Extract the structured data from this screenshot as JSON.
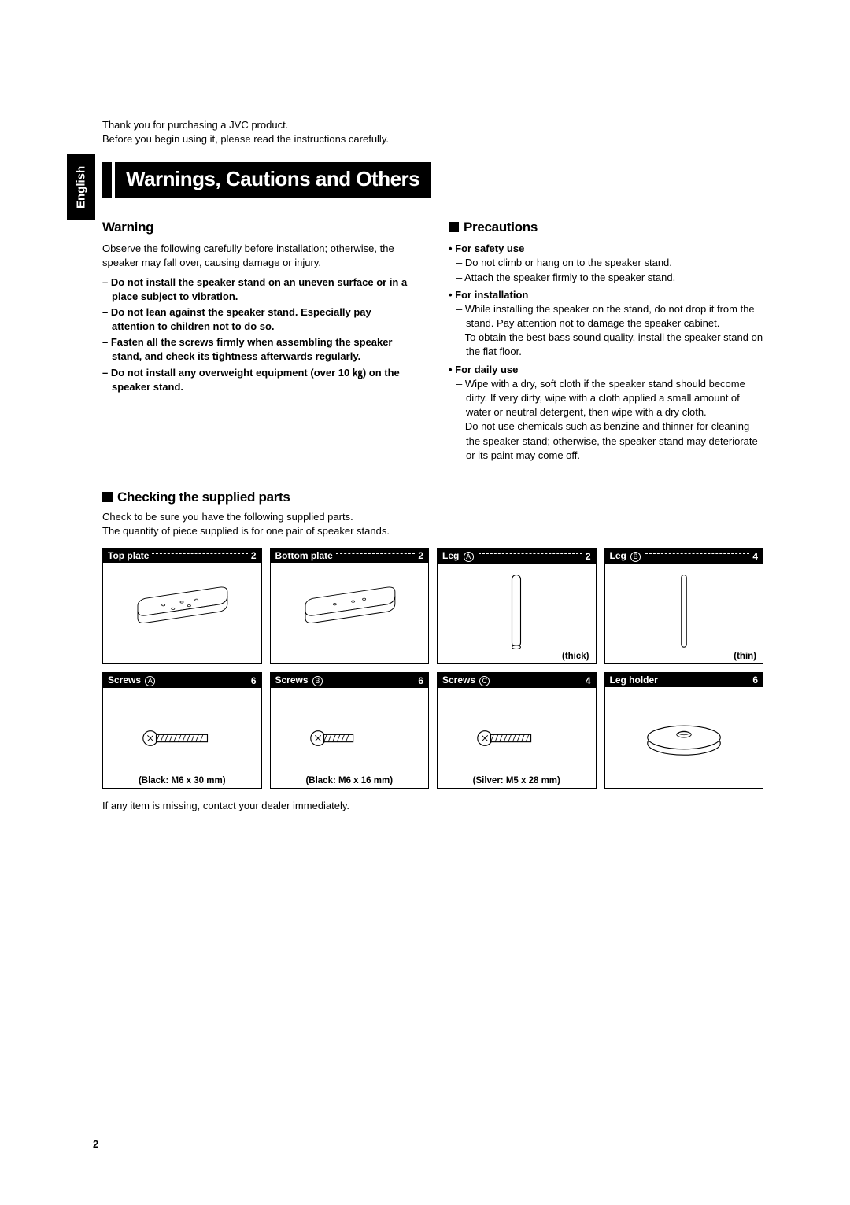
{
  "language_tab": "English",
  "intro_line1": "Thank you for purchasing a JVC product.",
  "intro_line2": "Before you begin using it, please read the instructions carefully.",
  "main_title": "Warnings, Cautions and Others",
  "warning": {
    "heading": "Warning",
    "lead": "Observe the following carefully before installation; otherwise, the speaker may fall over, causing damage or injury.",
    "items": [
      "Do not install the speaker stand on an uneven surface or in a place subject to vibration.",
      "Do not lean against the speaker stand. Especially pay attention to children not to do so.",
      "Fasten all the screws firmly when assembling the speaker stand, and check its tightness afterwards regularly.",
      "Do not install any overweight equipment (over 10 ㎏) on the speaker stand."
    ]
  },
  "precautions": {
    "heading": "Precautions",
    "groups": [
      {
        "head": "For safety use",
        "items": [
          "Do not climb or hang on to the speaker stand.",
          "Attach the speaker firmly to the speaker stand."
        ]
      },
      {
        "head": "For installation",
        "items": [
          "While installing the speaker on the stand, do not drop it from the stand. Pay attention not to damage the speaker cabinet.",
          "To obtain the best bass sound quality, install the speaker stand on the flat floor."
        ]
      },
      {
        "head": "For daily use",
        "items": [
          "Wipe with a dry, soft cloth if the speaker stand should become dirty. If very dirty, wipe with a cloth applied a small amount of water or neutral detergent, then wipe with a dry cloth.",
          "Do not use chemicals such as benzine and thinner for cleaning the speaker stand; otherwise, the speaker stand may deteriorate or its paint may come off."
        ]
      }
    ]
  },
  "checking": {
    "heading": "Checking the supplied parts",
    "intro1": "Check to be sure you have the following supplied parts.",
    "intro2": "The quantity of piece supplied is for one pair of speaker stands.",
    "parts": [
      {
        "name": "Top plate",
        "circ": "",
        "qty": "2",
        "note": "",
        "note_pos": "center",
        "svg": "top-plate"
      },
      {
        "name": "Bottom plate",
        "circ": "",
        "qty": "2",
        "note": "",
        "note_pos": "center",
        "svg": "bottom-plate"
      },
      {
        "name": "Leg ",
        "circ": "A",
        "qty": "2",
        "note": "(thick)",
        "note_pos": "right",
        "svg": "leg-thick"
      },
      {
        "name": "Leg ",
        "circ": "B",
        "qty": "4",
        "note": "(thin)",
        "note_pos": "right",
        "svg": "leg-thin"
      },
      {
        "name": "Screws ",
        "circ": "A",
        "qty": "6",
        "note": "(Black: M6 x 30 mm)",
        "note_pos": "center",
        "svg": "screw-long"
      },
      {
        "name": "Screws ",
        "circ": "B",
        "qty": "6",
        "note": "(Black: M6 x 16 mm)",
        "note_pos": "center",
        "svg": "screw-short"
      },
      {
        "name": "Screws ",
        "circ": "C",
        "qty": "4",
        "note": "(Silver: M5 x 28 mm)",
        "note_pos": "center",
        "svg": "screw-silver"
      },
      {
        "name": "Leg holder ",
        "circ": "",
        "qty": "6",
        "note": "",
        "note_pos": "center",
        "svg": "leg-holder"
      }
    ],
    "closing": "If any item is missing, contact your dealer immediately."
  },
  "page_number": "2",
  "colors": {
    "text": "#000000",
    "bg": "#ffffff",
    "inverse_bg": "#000000",
    "inverse_text": "#ffffff"
  }
}
